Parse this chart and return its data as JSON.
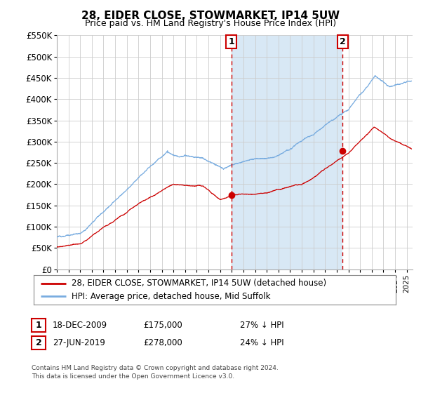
{
  "title": "28, EIDER CLOSE, STOWMARKET, IP14 5UW",
  "subtitle": "Price paid vs. HM Land Registry's House Price Index (HPI)",
  "legend_line1": "28, EIDER CLOSE, STOWMARKET, IP14 5UW (detached house)",
  "legend_line2": "HPI: Average price, detached house, Mid Suffolk",
  "sale1_label": "1",
  "sale1_date": "18-DEC-2009",
  "sale1_price": "£175,000",
  "sale1_hpi": "27% ↓ HPI",
  "sale1_year": 2009.96,
  "sale1_value": 175000,
  "sale2_label": "2",
  "sale2_date": "27-JUN-2019",
  "sale2_price": "£278,000",
  "sale2_hpi": "24% ↓ HPI",
  "sale2_year": 2019.49,
  "sale2_value": 278000,
  "footer": "Contains HM Land Registry data © Crown copyright and database right 2024.\nThis data is licensed under the Open Government Licence v3.0.",
  "line_color_red": "#cc0000",
  "line_color_blue": "#7aade0",
  "shade_color": "#d8e8f5",
  "dashed_line_color": "#cc0000",
  "background_color": "#ffffff",
  "grid_color": "#cccccc",
  "ylim": [
    0,
    550000
  ],
  "yticks": [
    0,
    50000,
    100000,
    150000,
    200000,
    250000,
    300000,
    350000,
    400000,
    450000,
    500000,
    550000
  ],
  "xlim_start": 1995.0,
  "xlim_end": 2025.5
}
